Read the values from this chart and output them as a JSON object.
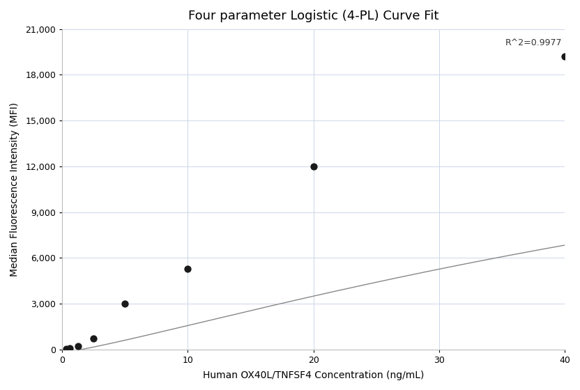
{
  "title": "Four parameter Logistic (4-PL) Curve Fit",
  "xlabel": "Human OX40L/TNFSF4 Concentration (ng/mL)",
  "ylabel": "Median Fluorescence Intensity (MFI)",
  "x_data": [
    0.313,
    0.625,
    1.25,
    2.5,
    5.0,
    10.0,
    20.0,
    40.0
  ],
  "y_data": [
    30,
    80,
    200,
    700,
    3000,
    5300,
    12000,
    19200
  ],
  "xlim": [
    0,
    40
  ],
  "ylim": [
    0,
    21000
  ],
  "yticks": [
    0,
    3000,
    6000,
    9000,
    12000,
    15000,
    18000,
    21000
  ],
  "xticks": [
    0,
    10,
    20,
    30,
    40
  ],
  "r_squared": "R^2=0.9977",
  "bg_color": "#ffffff",
  "grid_color": "#cdd6e8",
  "dot_color": "#1a1a1a",
  "line_color": "#888888",
  "title_fontsize": 13,
  "label_fontsize": 10,
  "tick_fontsize": 9,
  "annot_fontsize": 9
}
